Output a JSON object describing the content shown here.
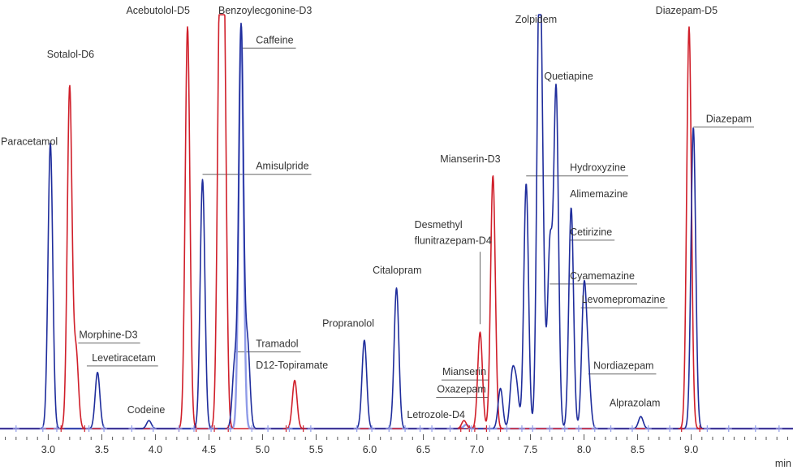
{
  "chart_data": {
    "type": "line",
    "xlabel": "min",
    "xlim": [
      2.55,
      9.95
    ],
    "ylim": [
      0,
      100
    ],
    "grid": false,
    "colors": {
      "red": "#d01f2a",
      "blue": "#1f2d9c",
      "light": "#8f9be8",
      "axis": "#555555",
      "leader": "#666666"
    },
    "x_ticks": [
      3.0,
      3.5,
      4.0,
      4.5,
      5.0,
      5.5,
      6.0,
      6.5,
      7.0,
      7.5,
      8.0,
      8.5,
      9.0
    ],
    "x_tick_labels": [
      "3.0",
      "3.5",
      "4.0",
      "4.5",
      "5.0",
      "5.5",
      "6.0",
      "6.5",
      "7.0",
      "7.5",
      "8.0",
      "8.5",
      "9.0"
    ],
    "minor_tick_step": 0.1,
    "series": [
      {
        "trace": "red",
        "peaks": [
          {
            "label": "Sotalol-D6",
            "rt": 3.2,
            "height": 85
          },
          {
            "label": "Morphine-D3",
            "rt": 3.26,
            "height": 19
          },
          {
            "label": "Acebutolol-D5",
            "rt": 4.3,
            "height": 100
          },
          {
            "label": "",
            "rt": 4.6,
            "height": 100
          },
          {
            "label": "",
            "rt": 4.64,
            "height": 100
          },
          {
            "label": "D12-Topiramate",
            "rt": 5.3,
            "height": 12
          },
          {
            "label": "",
            "rt": 6.88,
            "height": 2
          },
          {
            "label": "Desmethyl flunitrazepam-D4",
            "rt": 7.03,
            "height": 24
          },
          {
            "label": "Mianserin-D3",
            "rt": 7.15,
            "height": 63
          },
          {
            "label": "Diazepam-D5",
            "rt": 8.98,
            "height": 100
          }
        ]
      },
      {
        "trace": "blue",
        "peaks": [
          {
            "label": "Paracetamol",
            "rt": 3.02,
            "height": 71
          },
          {
            "label": "Levetiracetam",
            "rt": 3.46,
            "height": 14
          },
          {
            "label": "Codeine",
            "rt": 3.94,
            "height": 2
          },
          {
            "label": "Amisulpride",
            "rt": 4.44,
            "height": 62
          },
          {
            "label": "Tramadol",
            "rt": 4.74,
            "height": 16
          },
          {
            "label": "Caffeine",
            "rt": 4.8,
            "height": 100
          },
          {
            "label": "",
            "rt": 4.86,
            "height": 21
          },
          {
            "label": "Propranolol",
            "rt": 5.95,
            "height": 22
          },
          {
            "label": "Citalopram",
            "rt": 6.25,
            "height": 35
          },
          {
            "label": "Mianserin",
            "rt": 7.22,
            "height": 10
          },
          {
            "label": "Oxazepam",
            "rt": 7.33,
            "height": 13
          },
          {
            "label": "",
            "rt": 7.37,
            "height": 10
          },
          {
            "label": "Hydroxyzine",
            "rt": 7.46,
            "height": 61
          },
          {
            "label": "Zolpidem",
            "rt": 7.58,
            "height": 98
          },
          {
            "label": "Alimemazine",
            "rt": 7.61,
            "height": 45
          },
          {
            "label": "Cyamemazine",
            "rt": 7.68,
            "height": 40
          },
          {
            "label": "",
            "rt": 7.7,
            "height": 8
          },
          {
            "label": "Quetiapine",
            "rt": 7.74,
            "height": 83
          },
          {
            "label": "Cetirizine",
            "rt": 7.88,
            "height": 55
          },
          {
            "label": "Levomepromazine",
            "rt": 8.0,
            "height": 34
          },
          {
            "label": "Nordiazepam",
            "rt": 8.04,
            "height": 13
          },
          {
            "label": "Alprazolam",
            "rt": 8.53,
            "height": 3
          },
          {
            "label": "Diazepam",
            "rt": 9.02,
            "height": 75
          }
        ]
      },
      {
        "trace": "light",
        "peaks": [
          {
            "label": "Benzoylecgonine-D3",
            "rt": 4.8,
            "height": 100
          },
          {
            "label": "Letrozole-D4",
            "rt": 6.9,
            "height": 1
          }
        ]
      }
    ],
    "baseline_markers": {
      "red": [
        3.12,
        3.34,
        4.22,
        4.38,
        4.55,
        4.68,
        5.22,
        5.38,
        6.85,
        6.93,
        6.98,
        7.09,
        7.22,
        8.91,
        9.08
      ],
      "light": [
        2.7,
        2.95,
        3.08,
        3.38,
        3.52,
        3.78,
        3.98,
        4.22,
        4.36,
        4.52,
        4.7,
        4.9,
        5.05,
        5.25,
        5.45,
        5.88,
        6.02,
        6.18,
        6.33,
        6.47,
        6.58,
        6.75,
        6.95,
        7.12,
        7.28,
        7.42,
        7.52,
        7.68,
        7.82,
        7.95,
        8.1,
        8.25,
        8.45,
        8.6,
        8.8,
        9.15,
        9.35,
        9.6,
        9.82
      ]
    },
    "annotations": [
      {
        "text": "Paracetamol",
        "trace": "blue",
        "rt": 3.02,
        "label_x": 2.55,
        "label_y": 70.6,
        "under_from": 0
      },
      {
        "text": "Sotalol-D6",
        "trace": "red",
        "rt": 3.2,
        "label_x": 2.98,
        "label_y": 92.3,
        "under_from": 0
      },
      {
        "text": "Morphine-D3",
        "trace": "red",
        "rt": 3.26,
        "label_x": 3.28,
        "label_y": 22.5,
        "under_from": 3.28
      },
      {
        "text": "Levetiracetam",
        "trace": "blue",
        "rt": 3.46,
        "label_x": 3.4,
        "label_y": 16.8,
        "under_from": 3.36
      },
      {
        "text": "Codeine",
        "trace": "blue",
        "rt": 3.94,
        "label_x": 3.73,
        "label_y": 3.8,
        "under_from": 0
      },
      {
        "text": "Acebutolol-D5",
        "trace": "red",
        "rt": 4.3,
        "label_x": 3.72,
        "label_y": 103.2,
        "under_from": 0
      },
      {
        "text": "Benzoylecgonine-D3",
        "trace": "light",
        "rt": 4.8,
        "label_x": 4.58,
        "label_y": 103.2,
        "under_from": 0
      },
      {
        "text": "Caffeine",
        "trace": "blue",
        "rt": 4.8,
        "label_x": 4.93,
        "label_y": 95.9,
        "under_from": 4.8
      },
      {
        "text": "Amisulpride",
        "trace": "blue",
        "rt": 4.44,
        "label_x": 4.93,
        "label_y": 64.5,
        "under_from": 4.44
      },
      {
        "text": "Tramadol",
        "trace": "blue",
        "rt": 4.74,
        "label_x": 4.93,
        "label_y": 20.3,
        "under_from": 4.74
      },
      {
        "text": "D12-Topiramate",
        "trace": "red",
        "rt": 5.3,
        "label_x": 4.93,
        "label_y": 15.0,
        "under_from": 0
      },
      {
        "text": "Propranolol",
        "trace": "blue",
        "rt": 5.95,
        "label_x": 5.55,
        "label_y": 25.4,
        "under_from": 0
      },
      {
        "text": "Citalopram",
        "trace": "blue",
        "rt": 6.25,
        "label_x": 6.02,
        "label_y": 38.6,
        "under_from": 0
      },
      {
        "text": "Mianserin",
        "trace": "blue",
        "rt": 7.22,
        "label_x": 6.67,
        "label_y": 13.3,
        "under_from": 6.67
      },
      {
        "text": "Oxazepam",
        "trace": "blue",
        "rt": 7.33,
        "label_x": 6.62,
        "label_y": 9.0,
        "under_from": 6.62
      },
      {
        "text": "Letrozole-D4",
        "trace": "light",
        "rt": 6.9,
        "label_x": 6.34,
        "label_y": 2.6,
        "under_from": 0
      },
      {
        "text": "Desmethyl",
        "trace": "red",
        "rt": 7.03,
        "label_x": 6.41,
        "label_y": 49.9,
        "under_from": 0
      },
      {
        "text": "flunitrazepam-D4",
        "trace": "red",
        "rt": 7.03,
        "label_x": 6.41,
        "label_y": 46.0,
        "under_from": 0
      },
      {
        "text": "Mianserin-D3",
        "trace": "red",
        "rt": 7.15,
        "label_x": 6.65,
        "label_y": 66.3,
        "under_from": 0
      },
      {
        "text": "Zolpidem",
        "trace": "blue",
        "rt": 7.58,
        "label_x": 7.35,
        "label_y": 101.0,
        "under_from": 0
      },
      {
        "text": "Quetiapine",
        "trace": "blue",
        "rt": 7.74,
        "label_x": 7.62,
        "label_y": 86.9,
        "under_from": 0
      },
      {
        "text": "Hydroxyzine",
        "trace": "blue",
        "rt": 7.46,
        "label_x": 7.86,
        "label_y": 64.1,
        "under_from": 7.46
      },
      {
        "text": "Alimemazine",
        "trace": "blue",
        "rt": 7.61,
        "label_x": 7.86,
        "label_y": 57.6,
        "under_from": 0
      },
      {
        "text": "Cetirizine",
        "trace": "blue",
        "rt": 7.88,
        "label_x": 7.86,
        "label_y": 48.1,
        "under_from": 7.88
      },
      {
        "text": "Cyamemazine",
        "trace": "blue",
        "rt": 7.68,
        "label_x": 7.86,
        "label_y": 37.2,
        "under_from": 7.68
      },
      {
        "text": "Levomepromazine",
        "trace": "blue",
        "rt": 8.0,
        "label_x": 7.97,
        "label_y": 31.3,
        "under_from": 7.97
      },
      {
        "text": "Nordiazepam",
        "trace": "blue",
        "rt": 8.04,
        "label_x": 8.08,
        "label_y": 14.8,
        "under_from": 8.04
      },
      {
        "text": "Alprazolam",
        "trace": "blue",
        "rt": 8.53,
        "label_x": 8.23,
        "label_y": 5.6,
        "under_from": 0
      },
      {
        "text": "Diazepam-D5",
        "trace": "red",
        "rt": 8.98,
        "label_x": 8.66,
        "label_y": 103.2,
        "under_from": 0
      },
      {
        "text": "Diazepam",
        "trace": "blue",
        "rt": 9.02,
        "label_x": 9.13,
        "label_y": 76.3,
        "under_from": 9.02
      }
    ]
  }
}
